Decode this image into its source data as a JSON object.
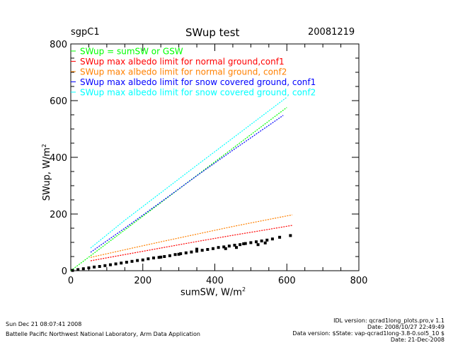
{
  "chart_data": {
    "type": "scatter",
    "site": "sgpC1",
    "title": "SWup test",
    "date": "20081219",
    "xlabel": "sumSW, W/m",
    "xlabel_sup": "2",
    "ylabel": "SWup, W/m",
    "ylabel_sup": "2",
    "xlim": [
      0,
      800
    ],
    "ylim": [
      0,
      800
    ],
    "xticks": [
      "0",
      "200",
      "400",
      "600",
      "800"
    ],
    "yticks": [
      "0",
      "200",
      "400",
      "600",
      "800"
    ],
    "grid": false,
    "legend_placement": "top-left",
    "series": [
      {
        "name": "SWup = sumSW or GSW",
        "color": "#00ff00",
        "points": [
          [
            0,
            0
          ],
          [
            50,
            48
          ],
          [
            100,
            96
          ],
          [
            200,
            192
          ],
          [
            300,
            288
          ],
          [
            400,
            384
          ],
          [
            500,
            480
          ],
          [
            600,
            576
          ]
        ]
      },
      {
        "name": "SWup max albedo limit for normal ground,conf1",
        "color": "#ff0000",
        "points": [
          [
            55,
            35
          ],
          [
            150,
            57
          ],
          [
            250,
            80
          ],
          [
            350,
            103
          ],
          [
            450,
            125
          ],
          [
            550,
            146
          ],
          [
            615,
            160
          ]
        ]
      },
      {
        "name": "SWup max albedo limit for normal ground, conf2",
        "color": "#ff8000",
        "points": [
          [
            55,
            47
          ],
          [
            150,
            74
          ],
          [
            250,
            102
          ],
          [
            350,
            129
          ],
          [
            450,
            156
          ],
          [
            550,
            181
          ],
          [
            615,
            197
          ]
        ]
      },
      {
        "name": "SWup max albedo limit for snow covered ground, conf1",
        "color": "#0000ff",
        "points": [
          [
            55,
            65
          ],
          [
            150,
            150
          ],
          [
            250,
            242
          ],
          [
            350,
            335
          ],
          [
            450,
            425
          ],
          [
            590,
            548
          ]
        ]
      },
      {
        "name": "SWup max albedo limit for snow covered ground, conf2",
        "color": "#00ffff",
        "points": [
          [
            55,
            80
          ],
          [
            150,
            178
          ],
          [
            250,
            275
          ],
          [
            350,
            372
          ],
          [
            450,
            468
          ],
          [
            600,
            612
          ]
        ]
      },
      {
        "name": "",
        "color": "#000000",
        "points": [
          [
            5,
            1
          ],
          [
            20,
            4
          ],
          [
            35,
            7
          ],
          [
            50,
            10
          ],
          [
            65,
            13
          ],
          [
            80,
            15
          ],
          [
            95,
            18
          ],
          [
            110,
            21
          ],
          [
            125,
            24
          ],
          [
            140,
            27
          ],
          [
            155,
            30
          ],
          [
            170,
            33
          ],
          [
            185,
            36
          ],
          [
            200,
            38
          ],
          [
            215,
            42
          ],
          [
            230,
            45
          ],
          [
            245,
            47
          ],
          [
            260,
            50
          ],
          [
            275,
            53
          ],
          [
            290,
            57
          ],
          [
            305,
            60
          ],
          [
            320,
            63
          ],
          [
            335,
            66
          ],
          [
            350,
            69
          ],
          [
            365,
            72
          ],
          [
            380,
            75
          ],
          [
            395,
            78
          ],
          [
            410,
            82
          ],
          [
            425,
            84
          ],
          [
            440,
            87
          ],
          [
            455,
            90
          ],
          [
            470,
            92
          ],
          [
            485,
            96
          ],
          [
            500,
            99
          ],
          [
            515,
            102
          ],
          [
            530,
            105
          ],
          [
            545,
            108
          ],
          [
            560,
            112
          ],
          [
            580,
            118
          ],
          [
            610,
            124
          ],
          [
            430,
            78
          ],
          [
            460,
            82
          ],
          [
            480,
            95
          ],
          [
            520,
            92
          ],
          [
            540,
            98
          ],
          [
            350,
            76
          ],
          [
            300,
            58
          ],
          [
            250,
            48
          ]
        ]
      }
    ]
  },
  "footer": {
    "timestamp": "Sun Dec 21 08:07:41 2008",
    "org": "Battelle Pacific Northwest National Laboratory, Arm Data Application",
    "idl_version": "IDL version: qcrad1long_plots.pro,v 1.1",
    "idl_date": "Date: 2008/10/27 22:49:49",
    "data_version": "Data version: $State: vap-qcrad1long-3.8-0.sol5_10 $",
    "data_date": "Date: 21-Dec-2008"
  }
}
